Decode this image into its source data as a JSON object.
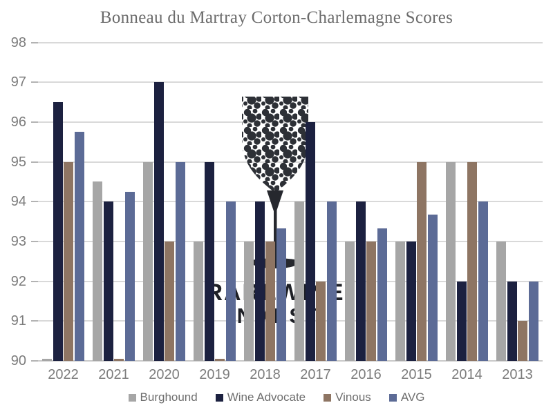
{
  "title": "Bonneau du Martray Corton-Charlemagne Scores",
  "watermark": {
    "line1": "RAREWINE",
    "line2": "INVEST",
    "icon": "wine-glass-of-dots"
  },
  "colors": {
    "background": "#FFFFFF",
    "gridline": "#D9D9D9",
    "axis_line": "#C9C9C9",
    "tick": "#B3B3B3",
    "axis_label": "#7C7C7C",
    "title_text": "#6B6B6B",
    "legend_label": "#6E6E6E",
    "watermark_dots": "#2D3036",
    "watermark_stem": "#26282E",
    "watermark_text": "#1E2026"
  },
  "chart_data": {
    "type": "bar",
    "title": "Bonneau du Martray Corton-Charlemagne Scores",
    "categories": [
      "2022",
      "2021",
      "2020",
      "2019",
      "2018",
      "2017",
      "2016",
      "2015",
      "2014",
      "2013"
    ],
    "series": [
      {
        "name": "Burghound",
        "color": "#A6A6A6",
        "values": [
          null,
          94.5,
          95,
          93,
          93,
          94,
          93,
          93,
          95,
          93
        ]
      },
      {
        "name": "Wine Advocate",
        "color": "#1C2140",
        "values": [
          96.5,
          94,
          97,
          95,
          94,
          96,
          94,
          93,
          92,
          92
        ]
      },
      {
        "name": "Vinous",
        "color": "#8E7563",
        "values": [
          95,
          null,
          93,
          null,
          93,
          92,
          93,
          95,
          95,
          91
        ]
      },
      {
        "name": "AVG",
        "color": "#5C6B96",
        "values": [
          95.75,
          94.25,
          95,
          94,
          93.33,
          94,
          93.33,
          93.67,
          94,
          92
        ]
      }
    ],
    "xlabel": "",
    "ylabel": "",
    "ylim": [
      90,
      98
    ],
    "yticks": [
      90,
      91,
      92,
      93,
      94,
      95,
      96,
      97,
      98
    ],
    "grid": true,
    "legend_position": "bottom",
    "missing_value_rendering": "tiny nub at baseline"
  }
}
